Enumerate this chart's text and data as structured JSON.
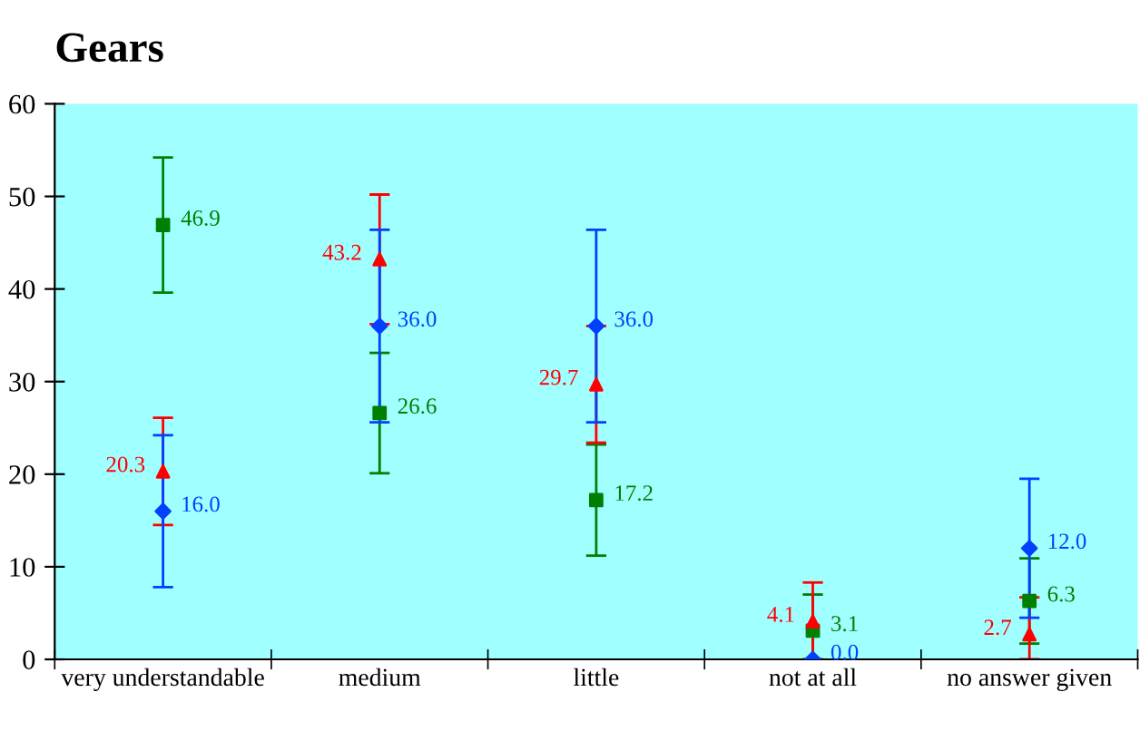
{
  "chart_data": {
    "type": "scatter",
    "title": "Gears",
    "categories": [
      "very understandable",
      "medium",
      "little",
      "not at all",
      "no answer given"
    ],
    "ylim": [
      0,
      60
    ],
    "yticks": [
      0,
      10,
      20,
      30,
      40,
      50,
      60
    ],
    "grid": false,
    "legend": false,
    "series": [
      {
        "color": "#008000",
        "marker": "square",
        "values": [
          46.9,
          26.6,
          17.2,
          3.1,
          6.3
        ],
        "value_labels": [
          "46.9",
          "26.6",
          "17.2",
          "3.1",
          "6.3"
        ],
        "errors": [
          7.3,
          6.5,
          6.0,
          [
            0,
            7.0
          ],
          4.6
        ]
      },
      {
        "color": "#ff0000",
        "marker": "triangle",
        "values": [
          20.3,
          43.2,
          29.7,
          4.1,
          2.7
        ],
        "value_labels": [
          "20.3",
          "43.2",
          "29.7",
          "4.1",
          "2.7"
        ],
        "errors": [
          5.8,
          7.0,
          6.3,
          [
            0,
            8.3
          ],
          [
            0,
            6.7
          ]
        ]
      },
      {
        "color": "#0040ff",
        "marker": "diamond",
        "values": [
          16.0,
          36.0,
          36.0,
          0.0,
          12.0
        ],
        "value_labels": [
          "16.0",
          "36.0",
          "36.0",
          "0.0",
          "12.0"
        ],
        "errors": [
          8.2,
          10.4,
          10.4,
          null,
          7.5
        ]
      }
    ]
  }
}
